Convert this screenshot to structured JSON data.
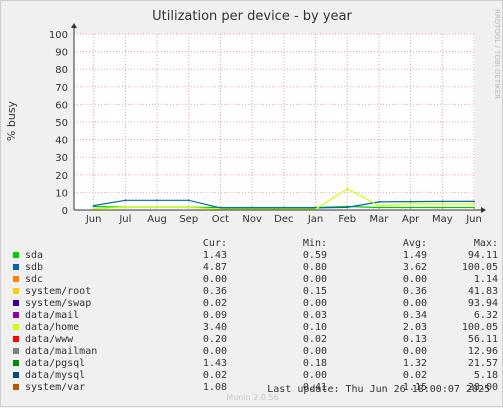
{
  "chart_data": {
    "type": "line",
    "title": "Utilization per device - by year",
    "ylabel": "% busy",
    "xlabel": "",
    "ylim": [
      0,
      100
    ],
    "y_ticks": [
      0,
      10,
      20,
      30,
      40,
      50,
      60,
      70,
      80,
      90,
      100
    ],
    "x_ticks": [
      "Jun",
      "Jul",
      "Aug",
      "Sep",
      "Oct",
      "Nov",
      "Dec",
      "Jan",
      "Feb",
      "Mar",
      "Apr",
      "May",
      "Jun"
    ],
    "grid": true,
    "x": [
      "Jun",
      "Jul",
      "Aug",
      "Sep",
      "Oct",
      "Nov",
      "Dec",
      "Jan",
      "Feb",
      "Mar",
      "Apr",
      "May",
      "Jun"
    ],
    "series": [
      {
        "name": "sda",
        "color": "#00cc00",
        "values": [
          2.0,
          1.6,
          1.6,
          1.6,
          1.4,
          1.4,
          1.4,
          1.4,
          2.0,
          1.4,
          1.4,
          1.4,
          1.4
        ]
      },
      {
        "name": "sdb",
        "color": "#0066b3",
        "values": [
          2.5,
          5.5,
          5.5,
          5.5,
          1.2,
          1.2,
          1.2,
          1.2,
          1.5,
          4.6,
          4.8,
          4.9,
          4.9
        ]
      },
      {
        "name": "data/home",
        "color": "#ccff00",
        "values": [
          0.8,
          1.5,
          1.5,
          1.5,
          0.5,
          0.5,
          0.5,
          0.5,
          12.0,
          2.5,
          3.5,
          3.4,
          3.4
        ]
      }
    ],
    "legend_headers": {
      "cur": "Cur:",
      "min": "Min:",
      "avg": "Avg:",
      "max": "Max:"
    },
    "legend": [
      {
        "name": "sda",
        "color": "#00cc00",
        "cur": "1.43",
        "min": "0.59",
        "avg": "1.49",
        "max": "94.11"
      },
      {
        "name": "sdb",
        "color": "#0066b3",
        "cur": "4.87",
        "min": "0.80",
        "avg": "3.62",
        "max": "100.05"
      },
      {
        "name": "sdc",
        "color": "#ff8000",
        "cur": "0.00",
        "min": "0.00",
        "avg": "0.00",
        "max": "1.14"
      },
      {
        "name": "system/root",
        "color": "#ffcc00",
        "cur": "0.36",
        "min": "0.15",
        "avg": "0.36",
        "max": "41.83"
      },
      {
        "name": "system/swap",
        "color": "#330099",
        "cur": "0.02",
        "min": "0.00",
        "avg": "0.00",
        "max": "93.94"
      },
      {
        "name": "data/mail",
        "color": "#990099",
        "cur": "0.09",
        "min": "0.03",
        "avg": "0.34",
        "max": "6.32"
      },
      {
        "name": "data/home",
        "color": "#ccff00",
        "cur": "3.40",
        "min": "0.10",
        "avg": "2.03",
        "max": "100.05"
      },
      {
        "name": "data/www",
        "color": "#ff0000",
        "cur": "0.20",
        "min": "0.02",
        "avg": "0.13",
        "max": "56.11"
      },
      {
        "name": "data/mailman",
        "color": "#808080",
        "cur": "0.00",
        "min": "0.00",
        "avg": "0.00",
        "max": "12.96"
      },
      {
        "name": "data/pgsql",
        "color": "#008f00",
        "cur": "1.43",
        "min": "0.18",
        "avg": "1.32",
        "max": "21.57"
      },
      {
        "name": "data/mysql",
        "color": "#00487d",
        "cur": "0.02",
        "min": "0.00",
        "avg": "0.02",
        "max": "5.18"
      },
      {
        "name": "system/var",
        "color": "#b35a00",
        "cur": "1.08",
        "min": "0.41",
        "avg": "1.15",
        "max": "28.00"
      }
    ]
  },
  "side_label": "RRDTOOL / TOBI OETIKER",
  "last_update": "Last update: Thu Jun 26 18:00:07 2025",
  "munin_mark": "Munin 2.0.56"
}
